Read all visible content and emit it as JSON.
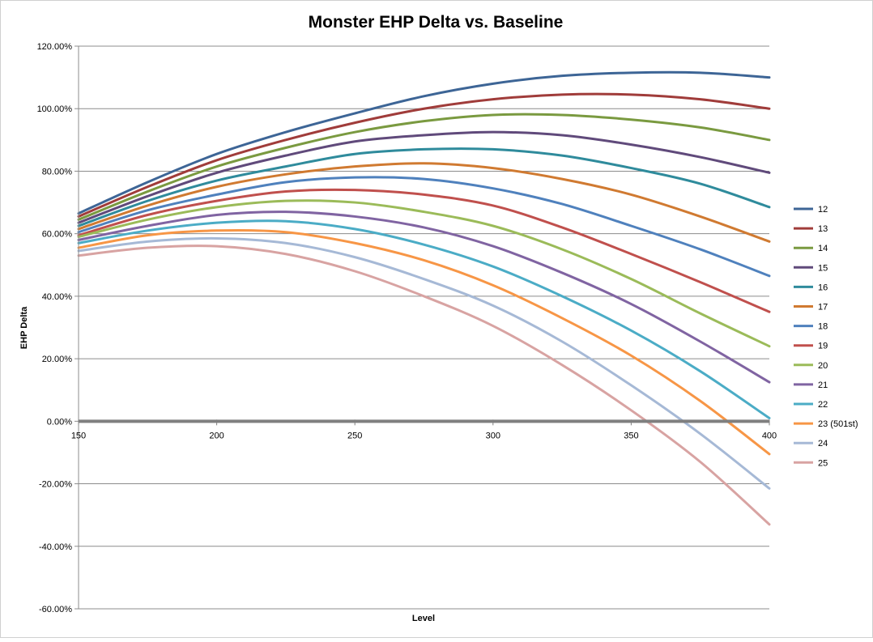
{
  "chart_data": {
    "type": "line",
    "title": "Monster EHP Delta vs. Baseline",
    "xlabel": "Level",
    "ylabel": "EHP Delta",
    "xlim": [
      150,
      400
    ],
    "ylim": [
      -60,
      120
    ],
    "x_ticks": [
      "150",
      "200",
      "250",
      "300",
      "350",
      "400"
    ],
    "y_ticks": [
      "120.00%",
      "100.00%",
      "80.00%",
      "60.00%",
      "40.00%",
      "20.00%",
      "0.00%",
      "-20.00%",
      "-40.00%",
      "-60.00%"
    ],
    "grid": "horizontal",
    "legend_position": "right",
    "x": [
      150,
      175,
      200,
      225,
      250,
      275,
      300,
      325,
      350,
      375,
      400
    ],
    "series": [
      {
        "name": "12",
        "color": "#3d6596",
        "values": [
          66.5,
          76.5,
          85.5,
          92.5,
          98.5,
          104,
          108,
          110.5,
          111.5,
          111.5,
          110
        ]
      },
      {
        "name": "13",
        "color": "#a03c3a",
        "values": [
          65.5,
          75,
          83.5,
          90,
          95.5,
          100,
          103,
          104.5,
          104.5,
          103,
          100
        ]
      },
      {
        "name": "14",
        "color": "#7a9a40",
        "values": [
          64.5,
          73.5,
          81.5,
          87.5,
          92.5,
          96,
          98,
          98,
          96.5,
          94,
          90
        ]
      },
      {
        "name": "15",
        "color": "#604a7b",
        "values": [
          63.5,
          72,
          79.5,
          85,
          89.5,
          91.5,
          92.5,
          91.5,
          88.5,
          84.5,
          79.5
        ]
      },
      {
        "name": "16",
        "color": "#2f8b9c",
        "values": [
          62.5,
          70.5,
          77,
          81.5,
          85.5,
          87,
          87,
          85,
          81,
          76,
          68.5
        ]
      },
      {
        "name": "17",
        "color": "#d07a31",
        "values": [
          61.5,
          69,
          75,
          79,
          81.5,
          82.5,
          81,
          77.5,
          72.5,
          65.5,
          57.5
        ]
      },
      {
        "name": "18",
        "color": "#4f81bd",
        "values": [
          60.5,
          67.5,
          72.5,
          76.5,
          78,
          77.5,
          74.5,
          69.5,
          62.5,
          55,
          46.5
        ]
      },
      {
        "name": "19",
        "color": "#c0504d",
        "values": [
          59.5,
          66,
          70.5,
          73.5,
          74,
          72.5,
          69,
          62,
          53.5,
          44.5,
          35
        ]
      },
      {
        "name": "20",
        "color": "#9bbb59",
        "values": [
          59,
          64.5,
          68.5,
          70.5,
          70,
          67,
          62.5,
          55,
          45.5,
          34.5,
          24
        ]
      },
      {
        "name": "21",
        "color": "#8064a2",
        "values": [
          58,
          62.5,
          66,
          67,
          65.5,
          62,
          56,
          47.5,
          37.5,
          25.5,
          12.5
        ]
      },
      {
        "name": "22",
        "color": "#4bacc6",
        "values": [
          57,
          61,
          63.5,
          64,
          61.5,
          56.5,
          49.5,
          40,
          29,
          16,
          1
        ]
      },
      {
        "name": "23 (501st)",
        "color": "#f79646",
        "values": [
          55.5,
          59.5,
          61,
          60.5,
          57,
          51.5,
          43.5,
          33,
          21,
          6.5,
          -10.5
        ]
      },
      {
        "name": "24",
        "color": "#a6b9d6",
        "values": [
          54.5,
          57.5,
          58.5,
          57,
          52.5,
          45.5,
          37,
          25.5,
          11.5,
          -4,
          -21.5
        ]
      },
      {
        "name": "25",
        "color": "#d8a3a2",
        "values": [
          53,
          55.5,
          56,
          53.5,
          48,
          40,
          30.5,
          18,
          3.5,
          -13,
          -33
        ]
      }
    ]
  }
}
